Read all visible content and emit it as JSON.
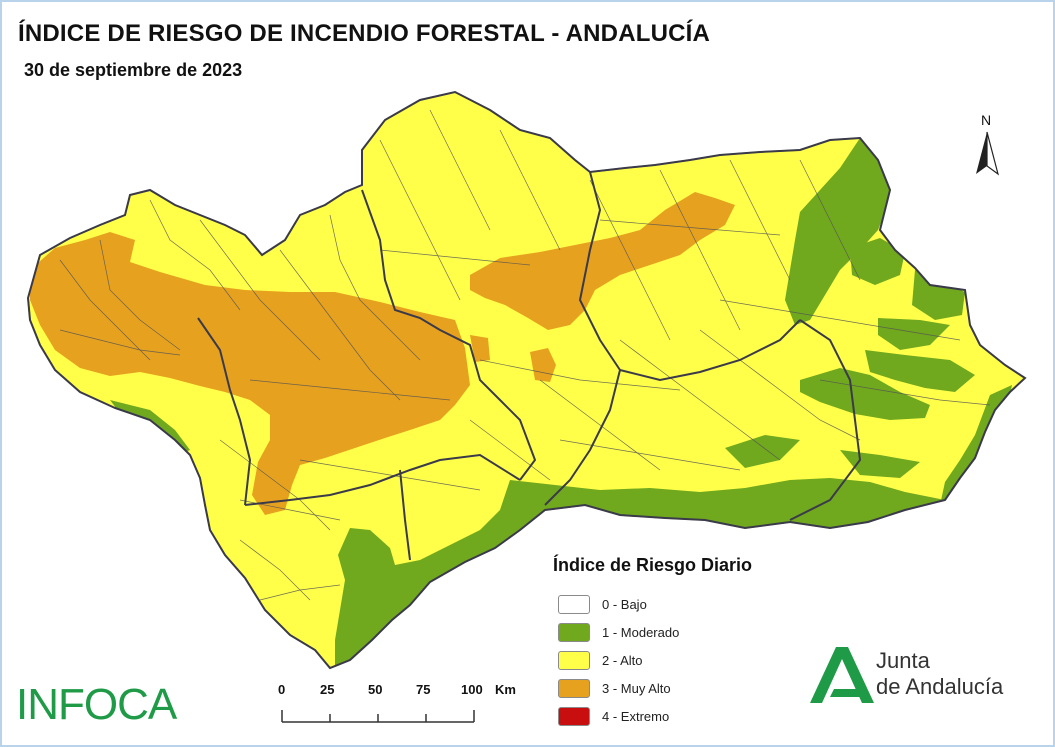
{
  "title": "ÍNDICE DE RIESGO DE INCENDIO FORESTAL - ANDALUCÍA",
  "date": "30 de septiembre de 2023",
  "north_label": "N",
  "legend": {
    "title": "Índice de Riesgo Diario",
    "items": [
      {
        "label": "0 - Bajo",
        "color": "#ffffff"
      },
      {
        "label": "1 - Moderado",
        "color": "#70a81e"
      },
      {
        "label": "2 - Alto",
        "color": "#ffff4a"
      },
      {
        "label": "3 - Muy Alto",
        "color": "#e6a11e"
      },
      {
        "label": "4 - Extremo",
        "color": "#c80e0e"
      }
    ]
  },
  "scale_bar": {
    "ticks": [
      "0",
      "25",
      "50",
      "75",
      "100"
    ],
    "unit": "Km"
  },
  "logos": {
    "infoca": "INFOCA",
    "junta_line1": "Junta",
    "junta_line2": "de Andalucía"
  },
  "colors": {
    "moderado": "#70a81e",
    "alto": "#ffff4a",
    "muy_alto": "#e6a11e",
    "boundary": "#555555",
    "infoca_green": "#1f9a47"
  }
}
